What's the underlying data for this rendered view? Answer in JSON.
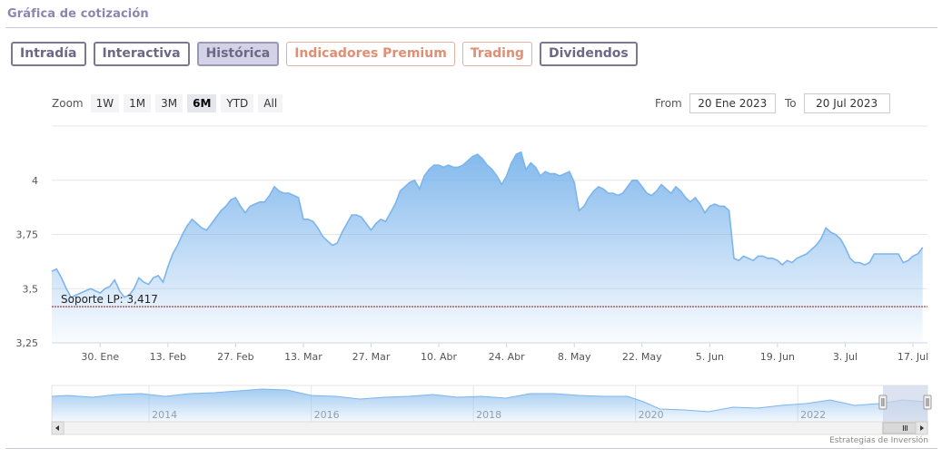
{
  "section_title": "Gráfica de cotización",
  "tabs": [
    {
      "label": "Intradía",
      "style": "normal"
    },
    {
      "label": "Interactiva",
      "style": "normal"
    },
    {
      "label": "Histórica",
      "style": "active"
    },
    {
      "label": "Indicadores Premium",
      "style": "premium"
    },
    {
      "label": "Trading",
      "style": "premium"
    },
    {
      "label": "Dividendos",
      "style": "normal"
    }
  ],
  "zoom": {
    "label": "Zoom",
    "options": [
      "1W",
      "1M",
      "3M",
      "6M",
      "YTD",
      "All"
    ],
    "selected": "6M"
  },
  "range": {
    "from_label": "From",
    "from_value": "20 Ene 2023",
    "to_label": "To",
    "to_value": "20 Jul 2023"
  },
  "credit": "Estrategias de Inversión",
  "colors": {
    "line": "#7cb5ec",
    "area_top": "#7cb5ec",
    "support": "#8b1a1a",
    "navigator_mask": "#cdd6ea"
  },
  "chart_data": {
    "type": "area",
    "y_ticks": [
      "4",
      "3,75",
      "3,5",
      "3,25"
    ],
    "y_tick_values": [
      4,
      3.75,
      3.5,
      3.25
    ],
    "ylim": [
      3.25,
      4.25
    ],
    "x_ticks": [
      "30. Ene",
      "13. Feb",
      "27. Feb",
      "13. Mar",
      "27. Mar",
      "10. Abr",
      "24. Abr",
      "8. May",
      "22. May",
      "5. Jun",
      "19. Jun",
      "3. Jul",
      "17. Jul"
    ],
    "x_tick_days": [
      10,
      24,
      38,
      52,
      66,
      80,
      94,
      108,
      122,
      136,
      150,
      164,
      178
    ],
    "xlim": [
      0,
      181
    ],
    "x_day_zero": "2023-01-20",
    "series": [
      {
        "points": [
          [
            0,
            3.58
          ],
          [
            1,
            3.59
          ],
          [
            2,
            3.55
          ],
          [
            3,
            3.5
          ],
          [
            4,
            3.46
          ],
          [
            5,
            3.47
          ],
          [
            6,
            3.48
          ],
          [
            7,
            3.49
          ],
          [
            8,
            3.5
          ],
          [
            9,
            3.49
          ],
          [
            10,
            3.48
          ],
          [
            11,
            3.5
          ],
          [
            12,
            3.51
          ],
          [
            13,
            3.54
          ],
          [
            14,
            3.49
          ],
          [
            15,
            3.46
          ],
          [
            16,
            3.47
          ],
          [
            17,
            3.5
          ],
          [
            18,
            3.55
          ],
          [
            19,
            3.53
          ],
          [
            20,
            3.52
          ],
          [
            21,
            3.55
          ],
          [
            22,
            3.56
          ],
          [
            23,
            3.53
          ],
          [
            24,
            3.6
          ],
          [
            25,
            3.66
          ],
          [
            26,
            3.7
          ],
          [
            27,
            3.75
          ],
          [
            28,
            3.79
          ],
          [
            29,
            3.82
          ],
          [
            30,
            3.8
          ],
          [
            31,
            3.78
          ],
          [
            32,
            3.77
          ],
          [
            33,
            3.8
          ],
          [
            34,
            3.83
          ],
          [
            35,
            3.86
          ],
          [
            36,
            3.88
          ],
          [
            37,
            3.91
          ],
          [
            38,
            3.92
          ],
          [
            39,
            3.88
          ],
          [
            40,
            3.85
          ],
          [
            41,
            3.88
          ],
          [
            42,
            3.89
          ],
          [
            43,
            3.9
          ],
          [
            44,
            3.9
          ],
          [
            45,
            3.93
          ],
          [
            46,
            3.97
          ],
          [
            47,
            3.95
          ],
          [
            48,
            3.94
          ],
          [
            49,
            3.94
          ],
          [
            50,
            3.93
          ],
          [
            51,
            3.92
          ],
          [
            52,
            3.82
          ],
          [
            53,
            3.82
          ],
          [
            54,
            3.81
          ],
          [
            55,
            3.78
          ],
          [
            56,
            3.74
          ],
          [
            57,
            3.72
          ],
          [
            58,
            3.7
          ],
          [
            59,
            3.71
          ],
          [
            60,
            3.76
          ],
          [
            61,
            3.8
          ],
          [
            62,
            3.84
          ],
          [
            63,
            3.84
          ],
          [
            64,
            3.83
          ],
          [
            65,
            3.8
          ],
          [
            66,
            3.77
          ],
          [
            67,
            3.8
          ],
          [
            68,
            3.82
          ],
          [
            69,
            3.81
          ],
          [
            70,
            3.85
          ],
          [
            71,
            3.89
          ],
          [
            72,
            3.95
          ],
          [
            73,
            3.97
          ],
          [
            74,
            3.99
          ],
          [
            75,
            4.0
          ],
          [
            76,
            3.96
          ],
          [
            77,
            4.02
          ],
          [
            78,
            4.05
          ],
          [
            79,
            4.07
          ],
          [
            80,
            4.07
          ],
          [
            81,
            4.06
          ],
          [
            82,
            4.07
          ],
          [
            83,
            4.06
          ],
          [
            84,
            4.06
          ],
          [
            85,
            4.07
          ],
          [
            86,
            4.09
          ],
          [
            87,
            4.11
          ],
          [
            88,
            4.12
          ],
          [
            89,
            4.1
          ],
          [
            90,
            4.07
          ],
          [
            91,
            4.05
          ],
          [
            92,
            4.02
          ],
          [
            93,
            3.98
          ],
          [
            94,
            4.02
          ],
          [
            95,
            4.08
          ],
          [
            96,
            4.12
          ],
          [
            97,
            4.13
          ],
          [
            98,
            4.05
          ],
          [
            99,
            4.08
          ],
          [
            100,
            4.06
          ],
          [
            101,
            4.02
          ],
          [
            102,
            4.04
          ],
          [
            103,
            4.03
          ],
          [
            104,
            4.03
          ],
          [
            105,
            4.02
          ],
          [
            106,
            4.03
          ],
          [
            107,
            4.04
          ],
          [
            108,
            3.99
          ],
          [
            109,
            3.86
          ],
          [
            110,
            3.88
          ],
          [
            111,
            3.92
          ],
          [
            112,
            3.95
          ],
          [
            113,
            3.97
          ],
          [
            114,
            3.96
          ],
          [
            115,
            3.94
          ],
          [
            116,
            3.94
          ],
          [
            117,
            3.93
          ],
          [
            118,
            3.94
          ],
          [
            119,
            3.97
          ],
          [
            120,
            4.0
          ],
          [
            121,
            4.0
          ],
          [
            122,
            3.97
          ],
          [
            123,
            3.94
          ],
          [
            124,
            3.93
          ],
          [
            125,
            3.95
          ],
          [
            126,
            3.98
          ],
          [
            127,
            3.96
          ],
          [
            128,
            3.94
          ],
          [
            129,
            3.97
          ],
          [
            130,
            3.95
          ],
          [
            131,
            3.92
          ],
          [
            132,
            3.9
          ],
          [
            133,
            3.92
          ],
          [
            134,
            3.89
          ],
          [
            135,
            3.85
          ],
          [
            136,
            3.88
          ],
          [
            137,
            3.89
          ],
          [
            138,
            3.88
          ],
          [
            139,
            3.88
          ],
          [
            140,
            3.86
          ],
          [
            141,
            3.64
          ],
          [
            142,
            3.63
          ],
          [
            143,
            3.65
          ],
          [
            144,
            3.64
          ],
          [
            145,
            3.63
          ],
          [
            146,
            3.65
          ],
          [
            147,
            3.65
          ],
          [
            148,
            3.64
          ],
          [
            149,
            3.64
          ],
          [
            150,
            3.63
          ],
          [
            151,
            3.61
          ],
          [
            152,
            3.63
          ],
          [
            153,
            3.62
          ],
          [
            154,
            3.64
          ],
          [
            155,
            3.65
          ],
          [
            156,
            3.66
          ],
          [
            157,
            3.68
          ],
          [
            158,
            3.7
          ],
          [
            159,
            3.73
          ],
          [
            160,
            3.78
          ],
          [
            161,
            3.76
          ],
          [
            162,
            3.75
          ],
          [
            163,
            3.73
          ],
          [
            164,
            3.69
          ],
          [
            165,
            3.64
          ],
          [
            166,
            3.62
          ],
          [
            167,
            3.62
          ],
          [
            168,
            3.61
          ],
          [
            169,
            3.62
          ],
          [
            170,
            3.66
          ],
          [
            171,
            3.66
          ],
          [
            172,
            3.66
          ],
          [
            173,
            3.66
          ],
          [
            174,
            3.66
          ],
          [
            175,
            3.66
          ],
          [
            176,
            3.62
          ],
          [
            177,
            3.63
          ],
          [
            178,
            3.65
          ],
          [
            179,
            3.66
          ],
          [
            180,
            3.69
          ]
        ]
      }
    ],
    "support": {
      "label": "Soporte LP: 3,417",
      "value": 3.417
    },
    "grid": true,
    "navigator": {
      "x_ticks": [
        "2014",
        "2016",
        "2018",
        "2020",
        "2022"
      ],
      "tick_years": [
        2014,
        2016,
        2018,
        2020,
        2022
      ],
      "year_range": [
        2012.8,
        2023.6
      ],
      "ylim": [
        1.5,
        5.5
      ],
      "series": [
        [
          2012.8,
          4.3
        ],
        [
          2013.0,
          4.4
        ],
        [
          2013.3,
          4.2
        ],
        [
          2013.6,
          4.5
        ],
        [
          2013.9,
          4.6
        ],
        [
          2014.2,
          4.3
        ],
        [
          2014.5,
          4.6
        ],
        [
          2014.8,
          4.7
        ],
        [
          2015.1,
          4.9
        ],
        [
          2015.4,
          5.1
        ],
        [
          2015.7,
          5.0
        ],
        [
          2016.0,
          4.4
        ],
        [
          2016.3,
          4.3
        ],
        [
          2016.6,
          4.0
        ],
        [
          2016.9,
          4.2
        ],
        [
          2017.2,
          4.3
        ],
        [
          2017.5,
          4.5
        ],
        [
          2017.8,
          4.2
        ],
        [
          2018.1,
          4.3
        ],
        [
          2018.4,
          4.1
        ],
        [
          2018.7,
          4.6
        ],
        [
          2019.0,
          4.6
        ],
        [
          2019.3,
          4.4
        ],
        [
          2019.6,
          4.3
        ],
        [
          2019.9,
          4.3
        ],
        [
          2020.1,
          3.7
        ],
        [
          2020.3,
          2.9
        ],
        [
          2020.6,
          2.8
        ],
        [
          2020.9,
          2.6
        ],
        [
          2021.2,
          3.1
        ],
        [
          2021.5,
          3.0
        ],
        [
          2021.8,
          3.3
        ],
        [
          2022.1,
          3.5
        ],
        [
          2022.4,
          3.9
        ],
        [
          2022.7,
          3.3
        ],
        [
          2023.0,
          3.5
        ],
        [
          2023.3,
          3.9
        ],
        [
          2023.6,
          3.7
        ]
      ],
      "window_years": [
        2023.05,
        2023.6
      ]
    }
  }
}
